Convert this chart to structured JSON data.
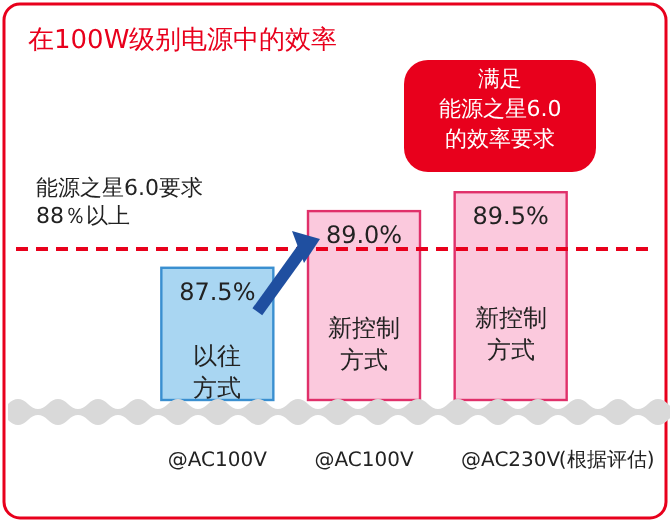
{
  "chart_data": {
    "type": "bar",
    "title": "在100W级别电源中的效率",
    "categories": [
      "@AC100V",
      "@AC100V",
      "@AC230V"
    ],
    "values": [
      87.5,
      89.0,
      89.5
    ],
    "value_labels": [
      "87.5%",
      "89.0%",
      "89.5%"
    ],
    "colors": [
      "#a9d6f2",
      "#fbc9dd",
      "#fbc9dd"
    ],
    "ylim": [
      84,
      93
    ],
    "ref_lines": [
      {
        "axis": "y",
        "value": 88,
        "label": "能源之星6.0要求\n88％以上",
        "color": "#e8001c",
        "line_style": "dashed"
      }
    ],
    "annotations": [
      "以往",
      "方式",
      "新控制",
      "方式",
      "新控制",
      "方式",
      "满足",
      "能源之星6.0",
      "的效率要求",
      "(根据评估)"
    ]
  }
}
